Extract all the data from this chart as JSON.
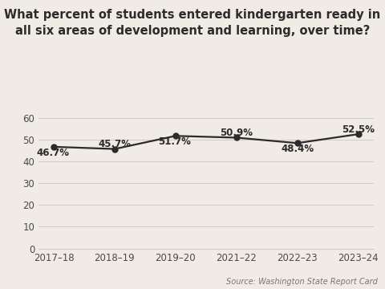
{
  "title": "What percent of students entered kindergarten ready in\nall six areas of development and learning, over time?",
  "x_labels": [
    "2017–18",
    "2018–19",
    "2019–20",
    "2021–22",
    "2022–23",
    "2023–24"
  ],
  "y_values": [
    46.7,
    45.7,
    51.7,
    50.9,
    48.4,
    52.5
  ],
  "annotations": [
    "46.7%",
    "45.7%",
    "51.7%",
    "50.9%",
    "48.4%",
    "52.5%"
  ],
  "annotation_offsets_x": [
    -0.02,
    0.0,
    -0.02,
    0.0,
    0.0,
    0.0
  ],
  "annotation_offsets_y": [
    -2.8,
    2.2,
    -2.8,
    2.2,
    -2.8,
    2.2
  ],
  "ylim": [
    0,
    65
  ],
  "yticks": [
    0,
    10,
    20,
    30,
    40,
    50,
    60
  ],
  "line_color": "#2b2b2b",
  "marker_color": "#2b2b2b",
  "marker_size": 5,
  "line_width": 1.6,
  "background_color": "#f0ece5",
  "grid_color": "#d0ccc5",
  "source_text": "Source: Washington State Report Card",
  "title_fontsize": 10.5,
  "tick_fontsize": 8.5,
  "annotation_fontsize": 8.5,
  "source_fontsize": 7.0
}
